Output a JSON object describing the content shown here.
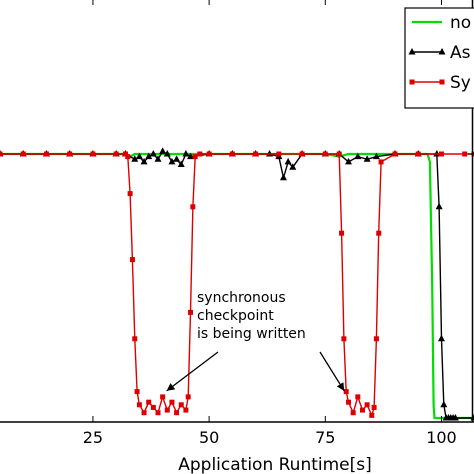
{
  "chart_data": {
    "type": "line",
    "xlabel": "Application Runtime[s]",
    "ylabel": "",
    "x_ticks": [
      25,
      50,
      75,
      100
    ],
    "xlim": [
      5,
      107
    ],
    "ylim": [
      0,
      1.2
    ],
    "grid": false,
    "legend_placement": "top-right",
    "legend": [
      {
        "label": "no",
        "color": "#00dd00",
        "marker": "none"
      },
      {
        "label": "As",
        "color": "#000000",
        "marker": "triangle"
      },
      {
        "label": "Sy",
        "color": "#dd0000",
        "marker": "square"
      }
    ],
    "series": [
      {
        "name": "no",
        "color": "#00dd00",
        "marker": "none",
        "x": [
          5,
          20,
          32,
          33,
          34,
          40,
          48,
          60,
          75,
          78,
          80,
          90,
          96,
          97,
          97.5,
          98,
          98.3,
          98.5,
          107
        ],
        "y": [
          1.0,
          1.0,
          1.0,
          0.99,
          1.0,
          1.0,
          1.0,
          1.0,
          1.0,
          0.99,
          1.0,
          1.0,
          1.0,
          1.0,
          0.97,
          0.5,
          0.05,
          0.0,
          0.0
        ]
      },
      {
        "name": "As",
        "color": "#000000",
        "marker": "triangle",
        "x": [
          5,
          10,
          15,
          20,
          25,
          30,
          32,
          34,
          35,
          36,
          37,
          38,
          39,
          40,
          41,
          42,
          43,
          44,
          45,
          46,
          50,
          55,
          60,
          63,
          65,
          66,
          67,
          68,
          70,
          75,
          78,
          80,
          82,
          84,
          86,
          90,
          95,
          99,
          99.5,
          100,
          100.5,
          101,
          101.5,
          102,
          102.5,
          103,
          107
        ],
        "y": [
          1.0,
          1.0,
          1.0,
          1.0,
          1.0,
          1.0,
          1.0,
          0.98,
          0.99,
          0.97,
          0.99,
          1.0,
          0.98,
          1.01,
          1.0,
          0.97,
          0.98,
          0.96,
          1.0,
          0.99,
          1.0,
          1.0,
          1.0,
          1.0,
          0.99,
          0.91,
          0.97,
          0.95,
          1.0,
          1.0,
          1.0,
          0.97,
          0.99,
          0.98,
          0.99,
          1.0,
          1.0,
          1.0,
          0.8,
          0.3,
          0.05,
          0.0,
          0.0,
          0.0,
          0.0,
          0.0,
          0.0
        ]
      },
      {
        "name": "Sy",
        "color": "#dd0000",
        "marker": "square",
        "x": [
          5,
          10,
          15,
          20,
          25,
          30,
          32,
          32.5,
          33,
          33.5,
          34,
          34.5,
          35,
          36,
          37,
          38,
          39,
          40,
          41,
          42,
          43,
          44,
          45,
          45.5,
          46,
          46.5,
          47,
          48,
          50,
          55,
          60,
          65,
          70,
          75,
          78,
          78.5,
          79,
          79.5,
          80,
          81,
          82,
          83,
          84,
          85,
          85.5,
          86,
          86.5,
          87,
          90,
          95,
          100,
          105,
          107
        ],
        "y": [
          1.0,
          1.0,
          1.0,
          1.0,
          1.0,
          1.0,
          1.0,
          0.99,
          0.85,
          0.6,
          0.3,
          0.1,
          0.05,
          0.02,
          0.06,
          0.04,
          0.02,
          0.08,
          0.03,
          0.06,
          0.02,
          0.05,
          0.03,
          0.08,
          0.4,
          0.8,
          0.99,
          1.0,
          1.0,
          1.0,
          1.0,
          1.0,
          1.0,
          1.0,
          1.0,
          0.7,
          0.3,
          0.1,
          0.06,
          0.02,
          0.08,
          0.03,
          0.05,
          0.01,
          0.04,
          0.3,
          0.7,
          0.97,
          1.0,
          1.0,
          1.0,
          1.0,
          1.0
        ]
      }
    ],
    "annotation": {
      "lines": [
        "synchronous",
        "checkpoint",
        "is being written"
      ],
      "arrow_targets": [
        {
          "x": 40,
          "y": 0.08
        },
        {
          "x": 79.5,
          "y": 0.08
        }
      ]
    }
  }
}
